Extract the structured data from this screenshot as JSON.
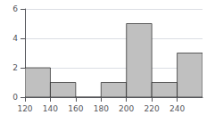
{
  "chart_data": {
    "type": "histogram",
    "bins": [
      120,
      140,
      160,
      180,
      200,
      220,
      240,
      260
    ],
    "values": [
      2,
      1,
      0,
      1,
      5,
      1,
      3
    ],
    "color": "#c0c0c0",
    "xlim": [
      120,
      260
    ],
    "xticks": [
      120,
      140,
      160,
      180,
      200,
      220,
      240
    ],
    "ylim": [
      0,
      6
    ],
    "yticks": [
      0,
      2,
      4,
      6
    ],
    "grid": "y"
  }
}
